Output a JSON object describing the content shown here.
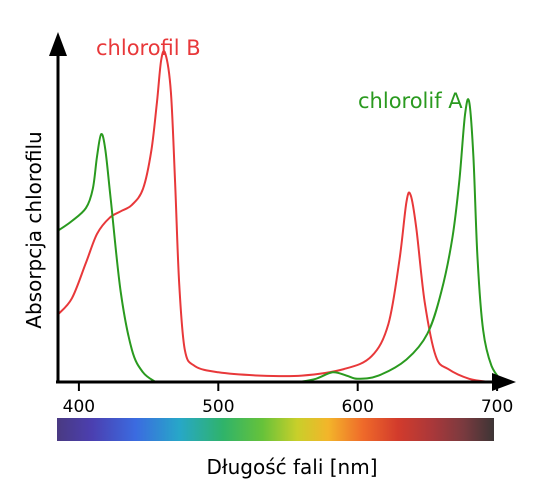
{
  "chart_data": {
    "type": "line",
    "title": "",
    "xlabel": "Długość fali [nm]",
    "ylabel": "Absorpcja chlorofilu",
    "x_ticks": [
      400,
      500,
      600,
      700
    ],
    "xlim": [
      385,
      715
    ],
    "ylim": [
      0,
      1
    ],
    "grid": false,
    "spectrum_bar": true,
    "series": [
      {
        "name": "chlorofil B",
        "color": "#e8383a",
        "label_position": "top-left",
        "points": [
          [
            385,
            0.21
          ],
          [
            395,
            0.26
          ],
          [
            405,
            0.37
          ],
          [
            413,
            0.46
          ],
          [
            422,
            0.51
          ],
          [
            430,
            0.53
          ],
          [
            438,
            0.55
          ],
          [
            446,
            0.6
          ],
          [
            452,
            0.72
          ],
          [
            456,
            0.87
          ],
          [
            459,
            1.0
          ],
          [
            462,
            1.02
          ],
          [
            466,
            0.9
          ],
          [
            469,
            0.62
          ],
          [
            472,
            0.3
          ],
          [
            476,
            0.1
          ],
          [
            483,
            0.05
          ],
          [
            500,
            0.03
          ],
          [
            530,
            0.02
          ],
          [
            560,
            0.02
          ],
          [
            590,
            0.04
          ],
          [
            610,
            0.08
          ],
          [
            622,
            0.18
          ],
          [
            630,
            0.38
          ],
          [
            635,
            0.56
          ],
          [
            638,
            0.58
          ],
          [
            642,
            0.48
          ],
          [
            648,
            0.25
          ],
          [
            656,
            0.08
          ],
          [
            665,
            0.04
          ],
          [
            680,
            0.01
          ],
          [
            695,
            0.0
          ]
        ]
      },
      {
        "name": "chlorolif A",
        "color": "#2a9a1f",
        "label_position": "top-right",
        "points": [
          [
            385,
            0.47
          ],
          [
            395,
            0.5
          ],
          [
            405,
            0.54
          ],
          [
            410,
            0.6
          ],
          [
            413,
            0.7
          ],
          [
            416,
            0.77
          ],
          [
            419,
            0.72
          ],
          [
            423,
            0.56
          ],
          [
            430,
            0.28
          ],
          [
            438,
            0.1
          ],
          [
            446,
            0.03
          ],
          [
            455,
            0.0
          ]
        ],
        "segments": [
          [
            [
              558,
              0.0
            ],
            [
              570,
              0.01
            ],
            [
              582,
              0.03
            ],
            [
              592,
              0.02
            ],
            [
              600,
              0.01
            ],
            [
              615,
              0.02
            ],
            [
              635,
              0.07
            ],
            [
              650,
              0.15
            ],
            [
              660,
              0.28
            ],
            [
              668,
              0.45
            ],
            [
              673,
              0.63
            ],
            [
              677,
              0.83
            ],
            [
              680,
              0.87
            ],
            [
              683,
              0.7
            ],
            [
              686,
              0.38
            ],
            [
              690,
              0.16
            ],
            [
              696,
              0.05
            ],
            [
              704,
              0.0
            ]
          ]
        ]
      }
    ]
  }
}
